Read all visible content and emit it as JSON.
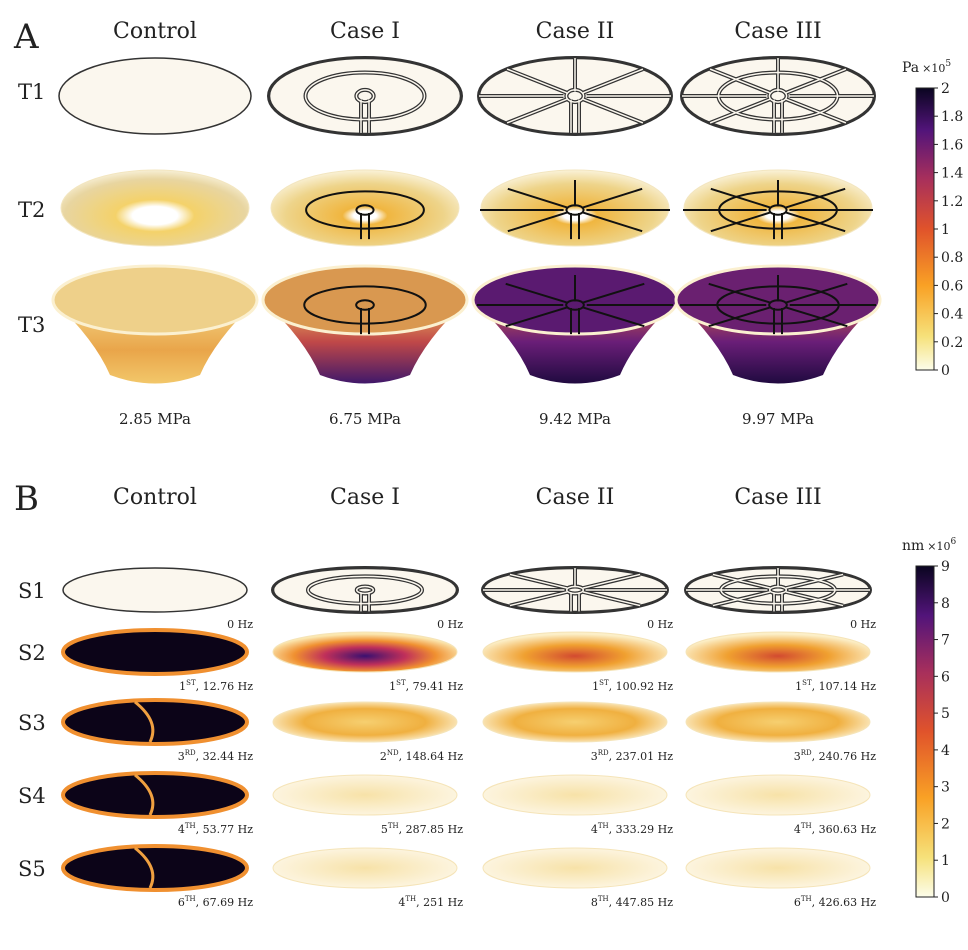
{
  "panel_a": {
    "label": "A",
    "columns": [
      "Control",
      "Case I",
      "Case II",
      "Case III"
    ],
    "rows": [
      "T1",
      "T2",
      "T3"
    ],
    "stress": [
      "2.85 MPa",
      "6.75 MPa",
      "9.42 MPa",
      "9.97 MPa"
    ],
    "colorbar": {
      "unit": "Pa",
      "multiplier": "×10",
      "exponent": "5",
      "ticks": [
        0,
        0.2,
        0.4,
        0.6,
        0.8,
        1,
        1.2,
        1.4,
        1.6,
        1.8,
        2
      ]
    }
  },
  "panel_b": {
    "label": "B",
    "columns": [
      "Control",
      "Case I",
      "Case II",
      "Case III"
    ],
    "rows": [
      "S1",
      "S2",
      "S3",
      "S4",
      "S5"
    ],
    "modes": [
      [
        {
          "text": "0 Hz"
        },
        {
          "text": "0 Hz"
        },
        {
          "text": "0 Hz"
        },
        {
          "text": "0 Hz"
        }
      ],
      [
        {
          "n": "1",
          "sup": "ST",
          "text": ", 12.76 Hz"
        },
        {
          "n": "1",
          "sup": "ST",
          "text": ", 79.41 Hz"
        },
        {
          "n": "1",
          "sup": "ST",
          "text": ", 100.92 Hz"
        },
        {
          "n": "1",
          "sup": "ST",
          "text": ", 107.14 Hz"
        }
      ],
      [
        {
          "n": "3",
          "sup": "RD",
          "text": ", 32.44 Hz"
        },
        {
          "n": "2",
          "sup": "ND",
          "text": ", 148.64 Hz"
        },
        {
          "n": "3",
          "sup": "RD",
          "text": ", 237.01 Hz"
        },
        {
          "n": "3",
          "sup": "RD",
          "text": ", 240.76 Hz"
        }
      ],
      [
        {
          "n": "4",
          "sup": "TH",
          "text": ", 53.77 Hz"
        },
        {
          "n": "5",
          "sup": "TH",
          "text": ", 287.85 Hz"
        },
        {
          "n": "4",
          "sup": "TH",
          "text": ", 333.29 Hz"
        },
        {
          "n": "4",
          "sup": "TH",
          "text": ", 360.63 Hz"
        }
      ],
      [
        {
          "n": "6",
          "sup": "TH",
          "text": ", 67.69 Hz"
        },
        {
          "n": "4",
          "sup": "TH",
          "text": ", 251 Hz"
        },
        {
          "n": "8",
          "sup": "TH",
          "text": ", 447.85 Hz"
        },
        {
          "n": "6",
          "sup": "TH",
          "text": ", 426.63 Hz"
        }
      ]
    ],
    "colorbar": {
      "unit": "nm",
      "multiplier": "×10",
      "exponent": "6",
      "ticks": [
        0,
        1,
        2,
        3,
        4,
        5,
        6,
        7,
        8,
        9
      ]
    }
  }
}
